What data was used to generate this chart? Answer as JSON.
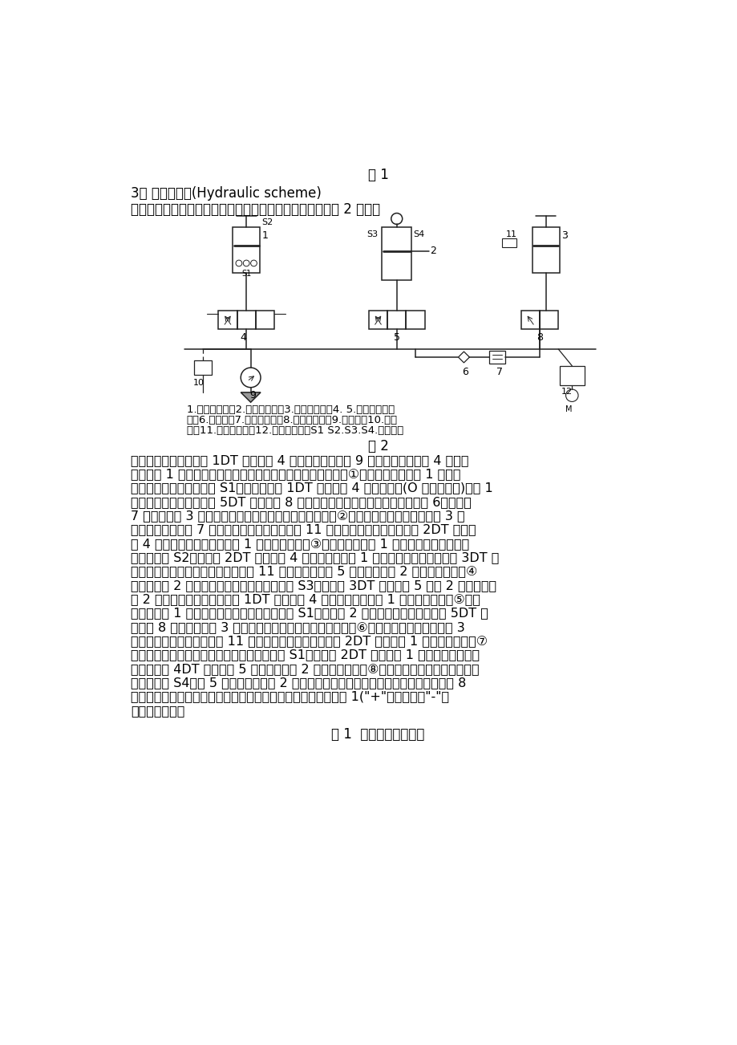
{
  "bg_color": "#ffffff",
  "text_color": "#000000",
  "fig1_caption": "图 1",
  "section_title": "3、 液压系统图(Hydraulic scheme)",
  "intro_line": "根据机械手的动作要求和工作循环设计出液压系统图，如图 2 所示：",
  "fig2_caption": "图 2",
  "legend_lines": [
    "1.升降液压缸；2.移动液压缸；3.夹紧液压缸；4. 5.电液比例换向",
    "阀；6.单向阀；7.比例减压阀；8.电磁换向阀；9.液压泵；10.溢流",
    "阀；11.压力继电器；12.比例溢流调；S1 S2.S3.S4.行程开关"
  ],
  "table_title": "表 1  电磁铁动作顺序表",
  "body_lines": [
    "按下启动按钮，电磁铁 1DT 得电，阀 4 左位接入，液压泵 9 输出的压力油经阀 4 左位接",
    "入升降缸 1 的上腔，其活塞向下运动，推动机械手下降（动作①右位下降）；当缸 1 下降到",
    "下限位置，压下行程开关 S1，使得电磁铁 1DT 断电，阀 4 切换至中位(O 型中位机能)，缸 1",
    "停止在下限位，而电磁铁 5DT 得电，阀 8 左位接入，泵输出的压力油经过单向阀 6、减压阀",
    "7 进入夹紧缸 3 的上腔，推动其活塞下移夹紧工件（动作②夹紧）；夹紧工件后，当缸 3 上",
    "腔压力达到减压阀 7 的调定压力时，压力继电器 11 动作发出信号，控制电磁铁 2DT 得电，",
    "阀 4 的右位接入系统，推动缸 1 向上运动（动作③右位上升）；缸 1 上升到上限位置时，压",
    "下行程开关 S2，电磁铁 2DT 断电，阀 4 切换到中位，缸 1 停止在上限位，而电磁铁 3DT 得",
    "电（此时工件仍被夹紧，压力继电器 11 仍在动作），阀 5 左位接入，缸 2 向左运动（动作④",
    "左移）；缸 2 左移到左限位置，压下行程开关 S3，电磁铁 3DT 断电，阀 5 切图 2 换至中位，",
    "缸 2 停止在左限位，而电磁铁 1DT 得电，阀 4 左位接入系统，缸 1 向下运动（动作⑤左位",
    "下降）；缸 1 下降到下限位置，压下行程开关 S1（此时缸 2 处于左限位置），电磁铁 5DT 断",
    "电，阀 8 回复右位，缸 3 活塞上移放下工件于目标位置（动作⑥松开）；松开工件后，缸 3",
    "油腔压力降低，压力继电器 11 复位，发出信号控制电磁铁 2DT 得电，缸 1 向上运动（动作⑦",
    "左位上升）；上升到上限位置，压下行程开关 S1，电磁铁 2DT 断电，缸 1 停止在上限位置，",
    "同时电磁铁 4DT 得电，阀 5 右位接入，缸 2 向右移动（动作⑧右移）；右移到右限位置，压",
    "下行程开关 S4，阀 5 切换至中位，缸 2 停止在右限位置（复位）。至此完成了机械手的 8",
    "个自动控制动作，进入到下个动作循环。电磁铁动作顺序表如表 1(\"+\"表示得电，\"-\"表",
    "示断电）所示。"
  ]
}
